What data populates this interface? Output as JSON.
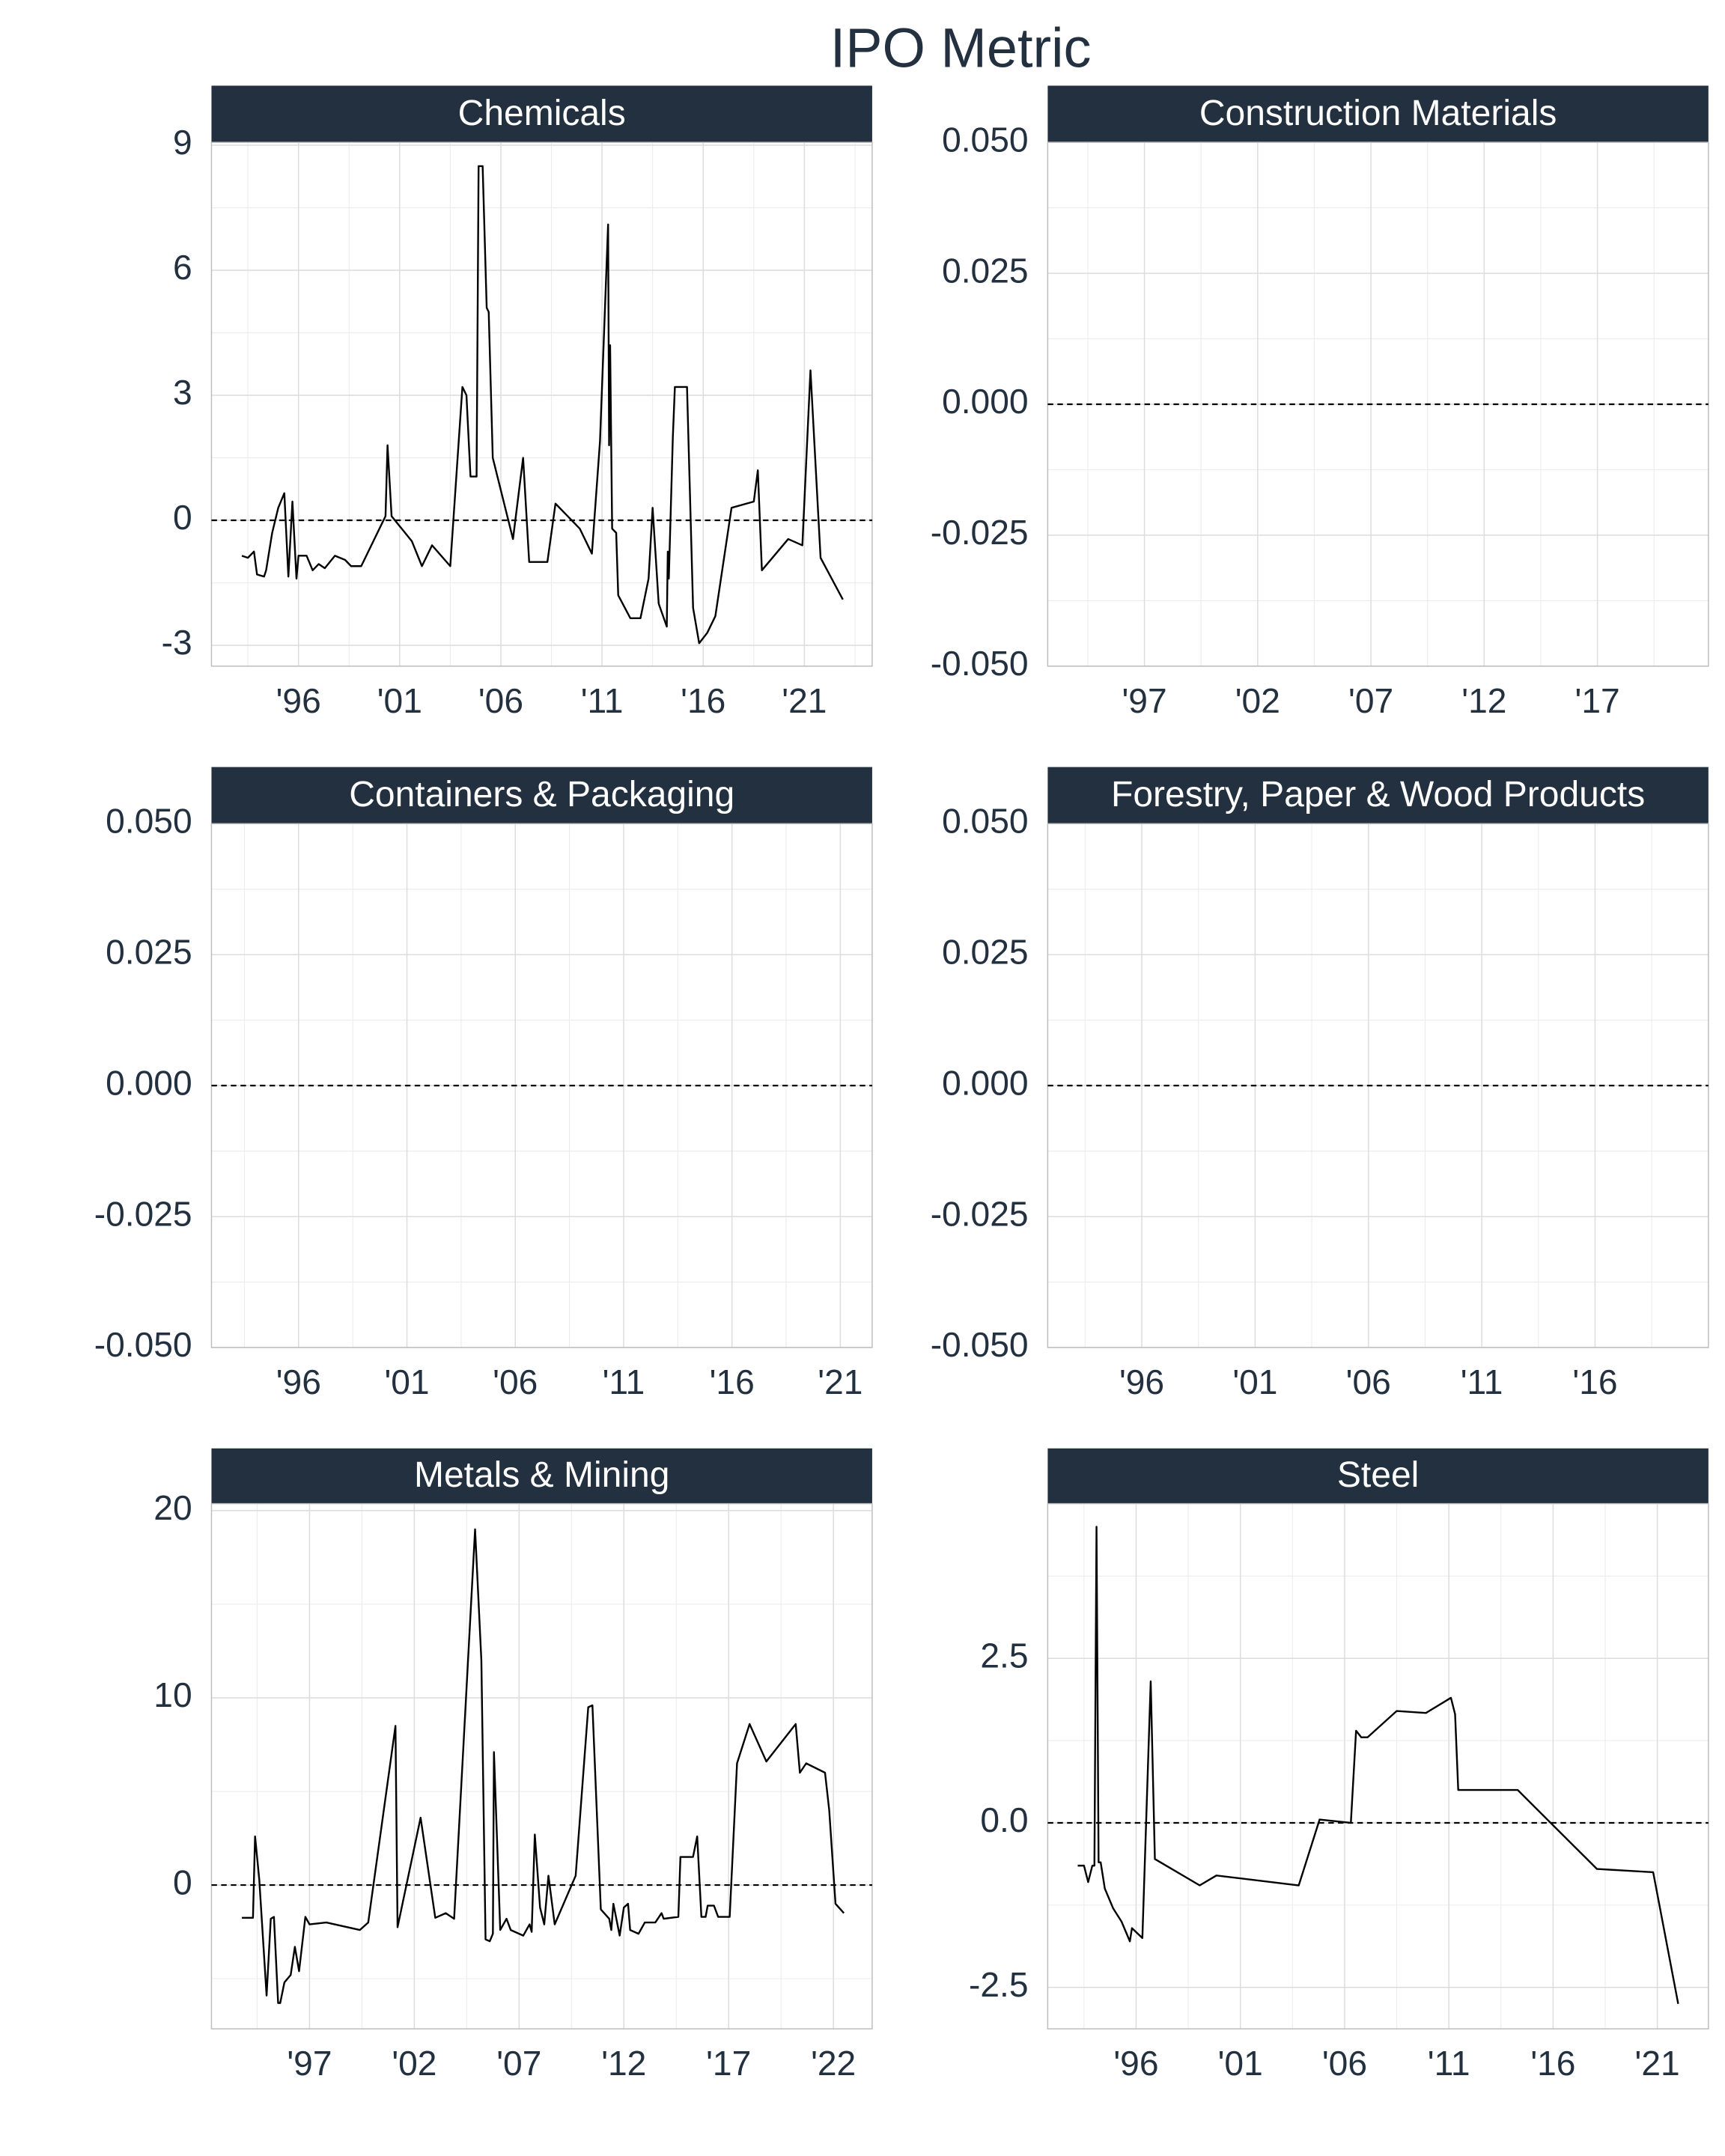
{
  "title": "IPO Metric",
  "chart_data": [
    {
      "type": "line",
      "title": "Chemicals",
      "color": "#000000",
      "hline": 0,
      "grid": true,
      "xlim": [
        1991.7,
        2024.35
      ],
      "ylim": [
        -3.5,
        9.07
      ],
      "xticks": [
        {
          "value": 1996,
          "label": "'96"
        },
        {
          "value": 2001,
          "label": "'01"
        },
        {
          "value": 2006,
          "label": "'06"
        },
        {
          "value": 2011,
          "label": "'11"
        },
        {
          "value": 2016,
          "label": "'16"
        },
        {
          "value": 2021,
          "label": "'21"
        }
      ],
      "yticks": [
        -3,
        0,
        3,
        6,
        9
      ],
      "x": [
        1993.2,
        1993.5,
        1993.8,
        1993.95,
        1994.3,
        1994.4,
        1994.7,
        1995.0,
        1995.3,
        1995.5,
        1995.7,
        1995.9,
        1996.0,
        1996.4,
        1996.7,
        1997.0,
        1997.3,
        1997.8,
        1998.3,
        1998.6,
        1999.1,
        2000.3,
        2000.4,
        2000.6,
        2001.6,
        2002.1,
        2002.6,
        2003.5,
        2004.1,
        2004.3,
        2004.5,
        2004.8,
        2004.9,
        2005.1,
        2005.3,
        2005.4,
        2005.6,
        2006.6,
        2007.1,
        2007.4,
        2008.3,
        2008.7,
        2009.9,
        2010.5,
        2010.9,
        2011.3,
        2011.35,
        2011.4,
        2011.5,
        2011.7,
        2011.8,
        2012.4,
        2012.9,
        2013.3,
        2013.5,
        2013.8,
        2014.2,
        2014.25,
        2014.3,
        2014.5,
        2014.6,
        2015.2,
        2015.5,
        2015.8,
        2016.2,
        2016.6,
        2017.4,
        2018.5,
        2018.7,
        2018.9,
        2020.2,
        2020.9,
        2021.3,
        2021.8,
        2022.9
      ],
      "values": [
        -0.85,
        -0.9,
        -0.75,
        -1.3,
        -1.35,
        -1.2,
        -0.3,
        0.3,
        0.65,
        -1.35,
        0.45,
        -1.4,
        -0.85,
        -0.85,
        -1.2,
        -1.05,
        -1.15,
        -0.85,
        -0.95,
        -1.1,
        -1.1,
        0.1,
        1.8,
        0.1,
        -0.5,
        -1.1,
        -0.6,
        -1.1,
        3.2,
        3.0,
        1.05,
        1.05,
        8.5,
        8.5,
        5.1,
        5.0,
        1.5,
        -0.45,
        1.5,
        -1.0,
        -1.0,
        0.4,
        -0.2,
        -0.8,
        1.9,
        7.1,
        1.8,
        4.2,
        -0.2,
        -0.3,
        -1.8,
        -2.35,
        -2.35,
        -1.4,
        0.3,
        -2.0,
        -2.55,
        -0.75,
        -1.4,
        2.0,
        3.2,
        3.2,
        -2.1,
        -2.95,
        -2.7,
        -2.3,
        0.3,
        0.45,
        1.2,
        -1.2,
        -0.45,
        -0.6,
        3.6,
        -0.9,
        -1.9
      ]
    },
    {
      "type": "line",
      "title": "Construction Materials",
      "color": "#000000",
      "hline": 0,
      "grid": true,
      "xlim": [
        1992.73,
        2021.9
      ],
      "ylim": [
        -0.05,
        0.05
      ],
      "xticks": [
        {
          "value": 1997,
          "label": "'97"
        },
        {
          "value": 2002,
          "label": "'02"
        },
        {
          "value": 2007,
          "label": "'07"
        },
        {
          "value": 2012,
          "label": "'12"
        },
        {
          "value": 2017,
          "label": "'17"
        }
      ],
      "yticks": [
        {
          "value": -0.05,
          "label": "-0.050"
        },
        {
          "value": -0.025,
          "label": "-0.025"
        },
        {
          "value": 0,
          "label": "0.000"
        },
        0.025,
        {
          "value": 0.05,
          "label": "0.050"
        }
      ],
      "x": [],
      "values": []
    },
    {
      "type": "line",
      "title": "Containers & Packaging",
      "color": "#000000",
      "hline": 0,
      "grid": true,
      "xlim": [
        1991.98,
        2022.47
      ],
      "ylim": [
        -0.05,
        0.05
      ],
      "xticks": [
        {
          "value": 1996,
          "label": "'96"
        },
        {
          "value": 2001,
          "label": "'01"
        },
        {
          "value": 2006,
          "label": "'06"
        },
        {
          "value": 2011,
          "label": "'11"
        },
        {
          "value": 2016,
          "label": "'16"
        },
        {
          "value": 2021,
          "label": "'21"
        }
      ],
      "yticks": [
        {
          "value": -0.05,
          "label": "-0.050"
        },
        {
          "value": -0.025,
          "label": "-0.025"
        },
        {
          "value": 0,
          "label": "0.000"
        },
        0.025,
        {
          "value": 0.05,
          "label": "0.050"
        }
      ],
      "x": [],
      "values": []
    },
    {
      "type": "line",
      "title": "Forestry, Paper & Wood Products",
      "color": "#000000",
      "hline": 0,
      "grid": true,
      "xlim": [
        1991.85,
        2021.0
      ],
      "ylim": [
        -0.05,
        0.05
      ],
      "xticks": [
        {
          "value": 1996,
          "label": "'96"
        },
        {
          "value": 2001,
          "label": "'01"
        },
        {
          "value": 2006,
          "label": "'06"
        },
        {
          "value": 2011,
          "label": "'11"
        },
        {
          "value": 2016,
          "label": "'16"
        }
      ],
      "yticks": [
        {
          "value": -0.05,
          "label": "-0.050"
        },
        {
          "value": -0.025,
          "label": "-0.025"
        },
        {
          "value": 0,
          "label": "0.000"
        },
        0.025,
        {
          "value": 0.05,
          "label": "0.050"
        }
      ],
      "x": [],
      "values": []
    },
    {
      "type": "line",
      "title": "Metals & Mining",
      "color": "#000000",
      "hline": 0,
      "grid": true,
      "xlim": [
        1992.32,
        2023.85
      ],
      "ylim": [
        -7.68,
        20.37
      ],
      "xticks": [
        {
          "value": 1997,
          "label": "'97"
        },
        {
          "value": 2002,
          "label": "'02"
        },
        {
          "value": 2007,
          "label": "'07"
        },
        {
          "value": 2012,
          "label": "'12"
        },
        {
          "value": 2017,
          "label": "'17"
        },
        {
          "value": 2022,
          "label": "'22"
        }
      ],
      "yticks": [
        0,
        10,
        20
      ],
      "x": [
        1993.77,
        1994.3,
        1994.4,
        1994.6,
        1994.95,
        1995.15,
        1995.3,
        1995.5,
        1995.6,
        1995.8,
        1996.1,
        1996.3,
        1996.5,
        1996.8,
        1997.0,
        1997.8,
        1999.4,
        1999.8,
        2001.1,
        2001.2,
        2002.3,
        2003.0,
        2003.5,
        2003.9,
        2004.9,
        2005.2,
        2005.4,
        2005.6,
        2005.75,
        2005.8,
        2006.1,
        2006.4,
        2006.6,
        2007.2,
        2007.5,
        2007.6,
        2007.75,
        2008.0,
        2008.2,
        2008.4,
        2008.7,
        2009.7,
        2010.3,
        2010.5,
        2010.9,
        2011.3,
        2011.4,
        2011.5,
        2011.8,
        2012.0,
        2012.2,
        2012.3,
        2012.7,
        2013.0,
        2013.5,
        2013.8,
        2013.9,
        2014.6,
        2014.7,
        2015.3,
        2015.5,
        2015.7,
        2015.9,
        2016.0,
        2016.3,
        2016.5,
        2017.05,
        2017.4,
        2018.0,
        2018.8,
        2020.2,
        2020.4,
        2020.7,
        2021.6,
        2021.8,
        2022.1,
        2022.5
      ],
      "values": [
        -1.75,
        -1.75,
        2.6,
        0.3,
        -5.9,
        -1.8,
        -1.7,
        -6.3,
        -6.3,
        -5.2,
        -4.8,
        -3.3,
        -4.6,
        -1.7,
        -2.1,
        -2.0,
        -2.4,
        -2.0,
        8.5,
        -2.25,
        3.6,
        -1.75,
        -1.5,
        -1.8,
        19.0,
        12.0,
        -2.9,
        -3.0,
        -2.6,
        7.1,
        -2.4,
        -1.8,
        -2.4,
        -2.7,
        -2.1,
        -2.5,
        2.7,
        -1.2,
        -2.1,
        0.5,
        -2.1,
        0.5,
        9.5,
        9.6,
        -1.3,
        -1.8,
        -2.4,
        -1.0,
        -2.7,
        -1.2,
        -1.0,
        -2.4,
        -2.6,
        -2.0,
        -2.0,
        -1.5,
        -1.8,
        -1.7,
        1.5,
        1.5,
        2.6,
        -1.7,
        -1.7,
        -1.1,
        -1.1,
        -1.7,
        -1.7,
        6.5,
        8.6,
        6.6,
        8.6,
        6.0,
        6.5,
        6.0,
        4.0,
        -1.0,
        -1.5
      ]
    },
    {
      "type": "line",
      "title": "Steel",
      "color": "#000000",
      "hline": 0,
      "grid": true,
      "xlim": [
        1991.76,
        2023.45
      ],
      "ylim": [
        -3.13,
        4.85
      ],
      "xticks": [
        {
          "value": 1996,
          "label": "'96"
        },
        {
          "value": 2001,
          "label": "'01"
        },
        {
          "value": 2006,
          "label": "'06"
        },
        {
          "value": 2011,
          "label": "'11"
        },
        {
          "value": 2016,
          "label": "'16"
        },
        {
          "value": 2021,
          "label": "'21"
        }
      ],
      "yticks": [
        -2.5,
        {
          "value": 0,
          "label": "0.0"
        },
        2.5
      ],
      "x": [
        1993.2,
        1993.5,
        1993.7,
        1993.9,
        1994.0,
        1994.1,
        1994.2,
        1994.3,
        1994.5,
        1994.9,
        1995.3,
        1995.7,
        1995.8,
        1996.3,
        1996.7,
        1996.9,
        1999.05,
        1999.85,
        2003.8,
        2004.8,
        2006.3,
        2006.55,
        2006.8,
        2007.1,
        2008.5,
        2009.9,
        2011.1,
        2011.3,
        2011.45,
        2014.3,
        2018.1,
        2020.8,
        2022.0
      ],
      "values": [
        -0.65,
        -0.65,
        -0.9,
        -0.65,
        -0.65,
        4.5,
        -0.6,
        -0.6,
        -1.0,
        -1.3,
        -1.5,
        -1.8,
        -1.6,
        -1.75,
        2.15,
        -0.55,
        -0.95,
        -0.8,
        -0.95,
        0.05,
        0.0,
        1.4,
        1.3,
        1.3,
        1.7,
        1.67,
        1.9,
        1.65,
        0.5,
        0.5,
        -0.7,
        -0.75,
        -2.75
      ]
    }
  ]
}
